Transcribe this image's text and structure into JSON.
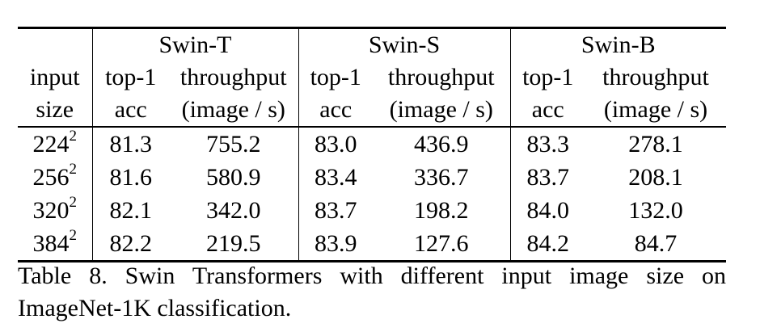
{
  "table": {
    "groups": [
      "Swin-T",
      "Swin-S",
      "Swin-B"
    ],
    "header_row1": {
      "input": "input",
      "top1": "top-1",
      "throughput": "throughput"
    },
    "header_row2": {
      "size": "size",
      "acc": "acc",
      "unit": "(image / s)"
    },
    "rows": [
      {
        "size": "224",
        "exp": "2",
        "t_acc": "81.3",
        "t_thr": "755.2",
        "s_acc": "83.0",
        "s_thr": "436.9",
        "b_acc": "83.3",
        "b_thr": "278.1"
      },
      {
        "size": "256",
        "exp": "2",
        "t_acc": "81.6",
        "t_thr": "580.9",
        "s_acc": "83.4",
        "s_thr": "336.7",
        "b_acc": "83.7",
        "b_thr": "208.1"
      },
      {
        "size": "320",
        "exp": "2",
        "t_acc": "82.1",
        "t_thr": "342.0",
        "s_acc": "83.7",
        "s_thr": "198.2",
        "b_acc": "84.0",
        "b_thr": "132.0"
      },
      {
        "size": "384",
        "exp": "2",
        "t_acc": "82.2",
        "t_thr": "219.5",
        "s_acc": "83.9",
        "s_thr": "127.6",
        "b_acc": "84.2",
        "b_thr": "84.7"
      }
    ]
  },
  "caption": "Table 8. Swin Transformers with different input image size on ImageNet-1K classification."
}
